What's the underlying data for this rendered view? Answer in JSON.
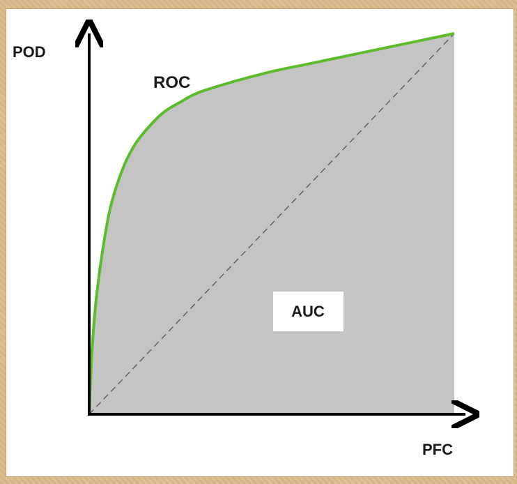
{
  "chart_data": {
    "type": "area",
    "xlabel": "PFC",
    "ylabel": "POD",
    "xlim": [
      0,
      1
    ],
    "ylim": [
      0,
      1
    ],
    "grid": false,
    "series": [
      {
        "name": "ROC",
        "color": "#5cbc2c",
        "x": [
          0,
          0.005,
          0.01,
          0.02,
          0.04,
          0.06,
          0.09,
          0.12,
          0.15,
          0.2,
          0.25,
          0.3,
          0.4,
          0.5,
          0.6,
          0.7,
          0.8,
          0.9,
          1.0
        ],
        "y": [
          0,
          0.12,
          0.2,
          0.31,
          0.45,
          0.55,
          0.64,
          0.7,
          0.74,
          0.79,
          0.82,
          0.845,
          0.875,
          0.9,
          0.92,
          0.94,
          0.96,
          0.98,
          1.0
        ]
      }
    ],
    "diagonal": {
      "style": "dashed",
      "color": "#555555"
    },
    "area_label": "AUC",
    "area_fill": "#c4c4c4"
  }
}
